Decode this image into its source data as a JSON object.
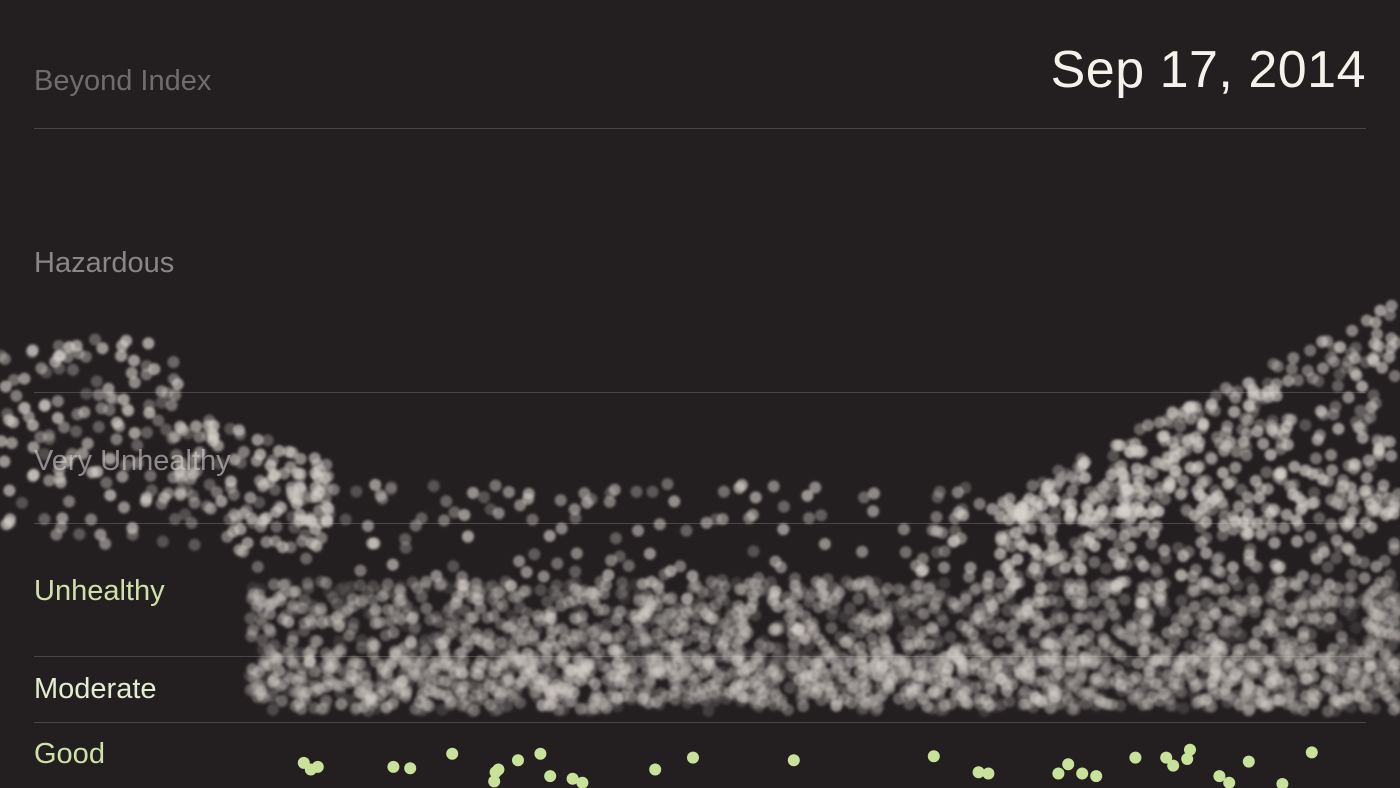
{
  "date_label": "Sep 17, 2014",
  "chart_data": {
    "type": "scatter",
    "title": "",
    "xlabel": "",
    "ylabel": "",
    "grid": true,
    "y_categories": [
      "Good",
      "Moderate",
      "Unhealthy",
      "Very Unhealthy",
      "Hazardous",
      "Beyond Index"
    ],
    "bands": [
      {
        "label": "Beyond Index",
        "color": "#6f6c6d",
        "aqi_min": 500,
        "aqi_max": 600
      },
      {
        "label": "Hazardous",
        "color": "#8a8688",
        "aqi_min": 300,
        "aqi_max": 500
      },
      {
        "label": "Very Unhealthy",
        "color": "#8e8a8b",
        "aqi_min": 200,
        "aqi_max": 300
      },
      {
        "label": "Unhealthy",
        "color": "#cfe0a8",
        "aqi_min": 150,
        "aqi_max": 200
      },
      {
        "label": "Moderate",
        "color": "#e3edd0",
        "aqi_min": 100,
        "aqi_max": 150
      },
      {
        "label": "Good",
        "color": "#cfe2a5",
        "aqi_min": 0,
        "aqi_max": 100
      }
    ],
    "colors": {
      "background": "#231f21",
      "gridline": "#4a4648",
      "point": "#d8d2cc",
      "good_point": "#c9e29a"
    },
    "good_points": [
      {
        "x": 0.217,
        "y": 38
      },
      {
        "x": 0.222,
        "y": 28
      },
      {
        "x": 0.227,
        "y": 32
      },
      {
        "x": 0.281,
        "y": 32
      },
      {
        "x": 0.293,
        "y": 30
      },
      {
        "x": 0.323,
        "y": 52
      },
      {
        "x": 0.354,
        "y": 24
      },
      {
        "x": 0.353,
        "y": 10
      },
      {
        "x": 0.356,
        "y": 28
      },
      {
        "x": 0.37,
        "y": 42
      },
      {
        "x": 0.386,
        "y": 52
      },
      {
        "x": 0.393,
        "y": 18
      },
      {
        "x": 0.409,
        "y": 14
      },
      {
        "x": 0.416,
        "y": 8
      },
      {
        "x": 0.468,
        "y": 28
      },
      {
        "x": 0.495,
        "y": 46
      },
      {
        "x": 0.567,
        "y": 42
      },
      {
        "x": 0.667,
        "y": 48
      },
      {
        "x": 0.699,
        "y": 24
      },
      {
        "x": 0.706,
        "y": 22
      },
      {
        "x": 0.756,
        "y": 22
      },
      {
        "x": 0.763,
        "y": 36
      },
      {
        "x": 0.773,
        "y": 22
      },
      {
        "x": 0.783,
        "y": 18
      },
      {
        "x": 0.811,
        "y": 46
      },
      {
        "x": 0.833,
        "y": 46
      },
      {
        "x": 0.838,
        "y": 34
      },
      {
        "x": 0.848,
        "y": 44
      },
      {
        "x": 0.85,
        "y": 58
      },
      {
        "x": 0.871,
        "y": 18
      },
      {
        "x": 0.878,
        "y": 8
      },
      {
        "x": 0.892,
        "y": 40
      },
      {
        "x": 0.916,
        "y": 6
      },
      {
        "x": 0.937,
        "y": 54
      }
    ]
  }
}
